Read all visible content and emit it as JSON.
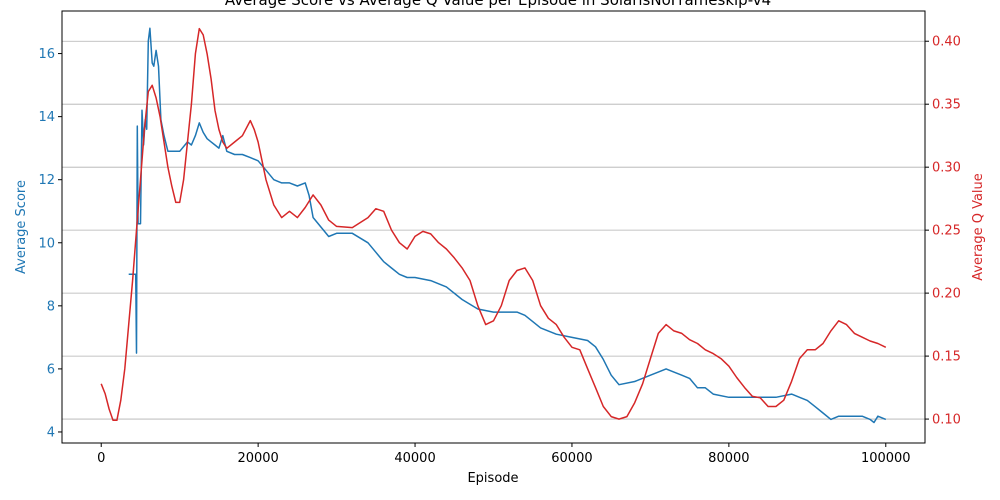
{
  "chart_data": {
    "type": "line",
    "title": "Average Score vs Average Q Value per Episode in SolarisNoFrameskip-v4",
    "xlabel": "Episode",
    "ylabel_left": "Average Score",
    "ylabel_right": "Average Q Value",
    "xlim": [
      -5000,
      105000
    ],
    "ylim_left": [
      3.65,
      17.35
    ],
    "ylim_right": [
      0.081,
      0.424
    ],
    "x_ticks": [
      0,
      20000,
      40000,
      60000,
      80000,
      100000
    ],
    "y_left_ticks": [
      4,
      6,
      8,
      10,
      12,
      14,
      16
    ],
    "y_right_ticks": [
      0.1,
      0.15,
      0.2,
      0.25,
      0.3,
      0.35,
      0.4
    ],
    "y_right_tick_labels": [
      "0.10",
      "0.15",
      "0.20",
      "0.25",
      "0.30",
      "0.35",
      "0.40"
    ],
    "grid": "horizontal (right axis)",
    "colors": {
      "score": "#1f77b4",
      "q": "#d62728"
    },
    "series": [
      {
        "axis": "left",
        "color": "#1f77b4",
        "x": [
          0,
          3500,
          4400,
          4500,
          4600,
          4700,
          5000,
          5200,
          5400,
          5600,
          5800,
          6000,
          6200,
          6500,
          6700,
          7000,
          7300,
          7600,
          8000,
          8500,
          9000,
          10000,
          11000,
          11500,
          12000,
          12500,
          13000,
          13500,
          14000,
          14500,
          15000,
          15500,
          16000,
          17000,
          18000,
          19000,
          20000,
          21000,
          22000,
          23000,
          24000,
          25000,
          26000,
          26500,
          27000,
          28000,
          29000,
          30000,
          32000,
          34000,
          35000,
          36000,
          37000,
          38000,
          39000,
          40000,
          42000,
          44000,
          46000,
          48000,
          50000,
          52000,
          53000,
          54000,
          55000,
          56000,
          58000,
          60000,
          62000,
          63000,
          64000,
          65000,
          66000,
          68000,
          70000,
          71000,
          72000,
          73000,
          74000,
          75000,
          76000,
          77000,
          78000,
          80000,
          82000,
          84000,
          86000,
          88000,
          89000,
          90000,
          91000,
          92000,
          93000,
          94000,
          95000,
          96000,
          97000,
          98000,
          98500,
          99000,
          100000
        ],
        "y": [
          null,
          9.0,
          9.0,
          6.5,
          13.7,
          10.6,
          10.6,
          14.2,
          13.1,
          13.9,
          13.6,
          16.4,
          16.8,
          15.7,
          15.6,
          16.1,
          15.6,
          13.9,
          13.4,
          12.9,
          12.9,
          12.9,
          13.2,
          13.1,
          13.4,
          13.8,
          13.5,
          13.3,
          13.2,
          13.1,
          13.0,
          13.4,
          12.9,
          12.8,
          12.8,
          12.7,
          12.6,
          12.3,
          12.0,
          11.9,
          11.9,
          11.8,
          11.9,
          11.5,
          10.8,
          10.5,
          10.2,
          10.3,
          10.3,
          10.0,
          9.7,
          9.4,
          9.2,
          9.0,
          8.9,
          8.9,
          8.8,
          8.6,
          8.2,
          7.9,
          7.8,
          7.8,
          7.8,
          7.7,
          7.5,
          7.3,
          7.1,
          7.0,
          6.9,
          6.7,
          6.3,
          5.8,
          5.5,
          5.6,
          5.8,
          5.9,
          6.0,
          5.9,
          5.8,
          5.7,
          5.4,
          5.4,
          5.2,
          5.1,
          5.1,
          5.1,
          5.1,
          5.2,
          5.1,
          5.0,
          4.8,
          4.6,
          4.4,
          4.5,
          4.5,
          4.5,
          4.5,
          4.4,
          4.3,
          4.5,
          4.4
        ]
      },
      {
        "axis": "right",
        "color": "#d62728",
        "x": [
          0,
          500,
          1000,
          1500,
          2000,
          2500,
          3000,
          3500,
          4000,
          4500,
          5000,
          5500,
          6000,
          6500,
          7000,
          7500,
          8000,
          8500,
          9000,
          9500,
          10000,
          10500,
          11000,
          11500,
          12000,
          12500,
          13000,
          13500,
          14000,
          14500,
          15000,
          15500,
          16000,
          17000,
          18000,
          19000,
          19500,
          20000,
          21000,
          22000,
          23000,
          24000,
          25000,
          26000,
          27000,
          28000,
          29000,
          30000,
          32000,
          34000,
          35000,
          36000,
          37000,
          38000,
          39000,
          40000,
          41000,
          42000,
          43000,
          44000,
          45000,
          46000,
          47000,
          48000,
          49000,
          50000,
          51000,
          52000,
          53000,
          54000,
          55000,
          56000,
          57000,
          58000,
          59000,
          60000,
          61000,
          62000,
          63000,
          64000,
          65000,
          66000,
          67000,
          68000,
          69000,
          70000,
          71000,
          72000,
          73000,
          74000,
          75000,
          76000,
          77000,
          78000,
          79000,
          80000,
          81000,
          82000,
          83000,
          84000,
          85000,
          86000,
          87000,
          88000,
          89000,
          90000,
          91000,
          92000,
          93000,
          94000,
          95000,
          96000,
          97000,
          98000,
          99000,
          100000
        ],
        "y": [
          0.128,
          0.12,
          0.108,
          0.099,
          0.099,
          0.115,
          0.14,
          0.175,
          0.21,
          0.25,
          0.29,
          0.33,
          0.36,
          0.365,
          0.355,
          0.34,
          0.32,
          0.3,
          0.285,
          0.272,
          0.272,
          0.29,
          0.32,
          0.35,
          0.39,
          0.41,
          0.405,
          0.39,
          0.37,
          0.345,
          0.33,
          0.32,
          0.315,
          0.32,
          0.325,
          0.337,
          0.33,
          0.32,
          0.29,
          0.27,
          0.26,
          0.265,
          0.26,
          0.268,
          0.278,
          0.27,
          0.258,
          0.253,
          0.252,
          0.26,
          0.267,
          0.265,
          0.25,
          0.24,
          0.235,
          0.245,
          0.249,
          0.247,
          0.24,
          0.235,
          0.228,
          0.22,
          0.21,
          0.19,
          0.175,
          0.178,
          0.19,
          0.21,
          0.218,
          0.22,
          0.21,
          0.19,
          0.18,
          0.175,
          0.165,
          0.157,
          0.155,
          0.14,
          0.125,
          0.11,
          0.102,
          0.1,
          0.102,
          0.113,
          0.128,
          0.148,
          0.168,
          0.175,
          0.17,
          0.168,
          0.163,
          0.16,
          0.155,
          0.152,
          0.148,
          0.142,
          0.133,
          0.125,
          0.118,
          0.117,
          0.11,
          0.11,
          0.115,
          0.13,
          0.148,
          0.155,
          0.155,
          0.16,
          0.17,
          0.178,
          0.175,
          0.168,
          0.165,
          0.162,
          0.16,
          0.157
        ]
      }
    ]
  }
}
